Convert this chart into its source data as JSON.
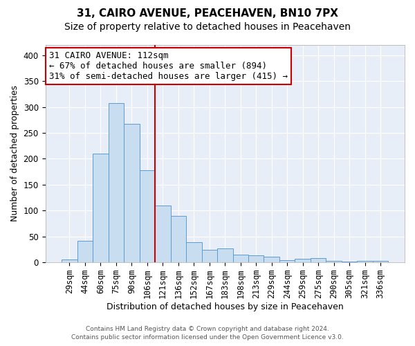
{
  "title": "31, CAIRO AVENUE, PEACEHAVEN, BN10 7PX",
  "subtitle": "Size of property relative to detached houses in Peacehaven",
  "xlabel": "Distribution of detached houses by size in Peacehaven",
  "ylabel": "Number of detached properties",
  "categories": [
    "29sqm",
    "44sqm",
    "60sqm",
    "75sqm",
    "90sqm",
    "106sqm",
    "121sqm",
    "136sqm",
    "152sqm",
    "167sqm",
    "183sqm",
    "198sqm",
    "213sqm",
    "229sqm",
    "244sqm",
    "259sqm",
    "275sqm",
    "290sqm",
    "305sqm",
    "321sqm",
    "336sqm"
  ],
  "values": [
    5,
    42,
    210,
    307,
    268,
    178,
    109,
    89,
    39,
    24,
    27,
    15,
    13,
    11,
    4,
    7,
    8,
    2,
    1,
    2,
    3
  ],
  "bar_color": "#c9ddf0",
  "bar_edge_color": "#5b9bd5",
  "vline_color": "#cc0000",
  "annotation_line1": "31 CAIRO AVENUE: 112sqm",
  "annotation_line2": "← 67% of detached houses are smaller (894)",
  "annotation_line3": "31% of semi-detached houses are larger (415) →",
  "annotation_box_color": "#ffffff",
  "annotation_box_edge": "#cc0000",
  "footer_line1": "Contains HM Land Registry data © Crown copyright and database right 2024.",
  "footer_line2": "Contains public sector information licensed under the Open Government Licence v3.0.",
  "ylim": [
    0,
    420
  ],
  "yticks": [
    0,
    50,
    100,
    150,
    200,
    250,
    300,
    350,
    400
  ],
  "background_color": "#e8eef8",
  "grid_color": "#ffffff",
  "title_fontsize": 11,
  "subtitle_fontsize": 10,
  "axis_label_fontsize": 9,
  "tick_fontsize": 8.5,
  "annotation_fontsize": 9
}
